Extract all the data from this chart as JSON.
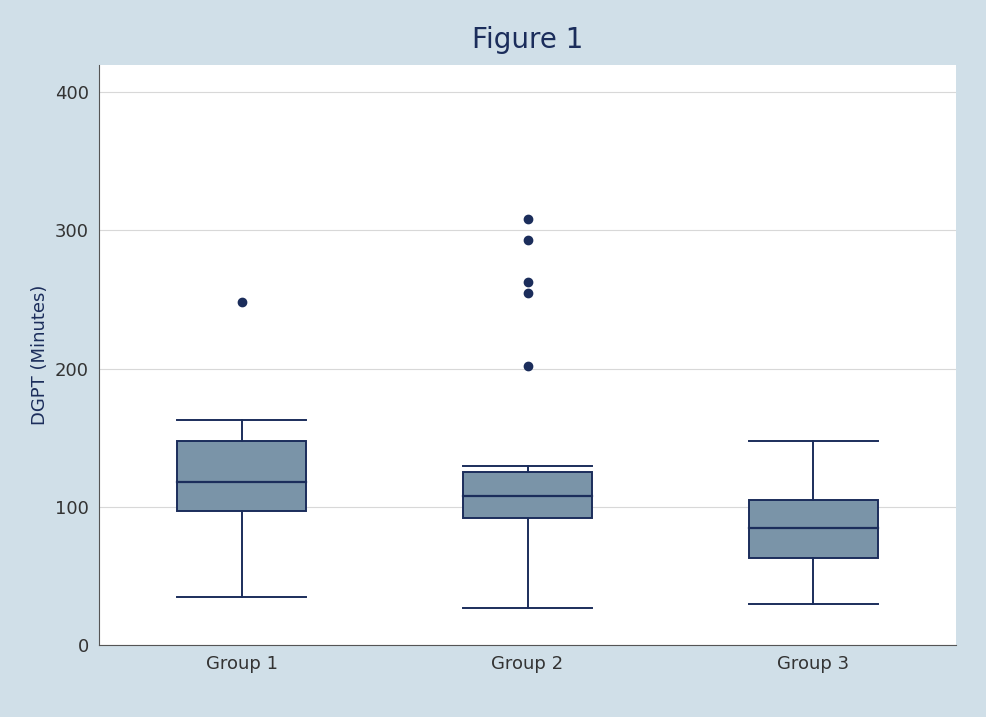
{
  "title": "Figure 1",
  "ylabel": "DGPT (Minutes)",
  "groups": [
    "Group 1",
    "Group 2",
    "Group 3"
  ],
  "box_stats": [
    {
      "med": 118,
      "q1": 97,
      "q3": 148,
      "whislo": 35,
      "whishi": 163,
      "fliers": [
        248
      ]
    },
    {
      "med": 108,
      "q1": 92,
      "q3": 125,
      "whislo": 27,
      "whishi": 130,
      "fliers": [
        202,
        255,
        263,
        293,
        308
      ]
    },
    {
      "med": 85,
      "q1": 63,
      "q3": 105,
      "whislo": 30,
      "whishi": 148,
      "fliers": []
    }
  ],
  "ylim": [
    0,
    420
  ],
  "yticks": [
    0,
    100,
    200,
    300,
    400
  ],
  "box_color": "#7A94A8",
  "box_edge_color": "#1B2D5B",
  "median_color": "#1B2D5B",
  "whisker_color": "#1B2D5B",
  "cap_color": "#1B2D5B",
  "flier_color": "#1B2D5B",
  "background_color": "#FFFFFF",
  "figure_bg_color": "#D0DFE8",
  "grid_color": "#D8D8D8",
  "title_fontsize": 20,
  "label_fontsize": 13,
  "tick_fontsize": 13
}
